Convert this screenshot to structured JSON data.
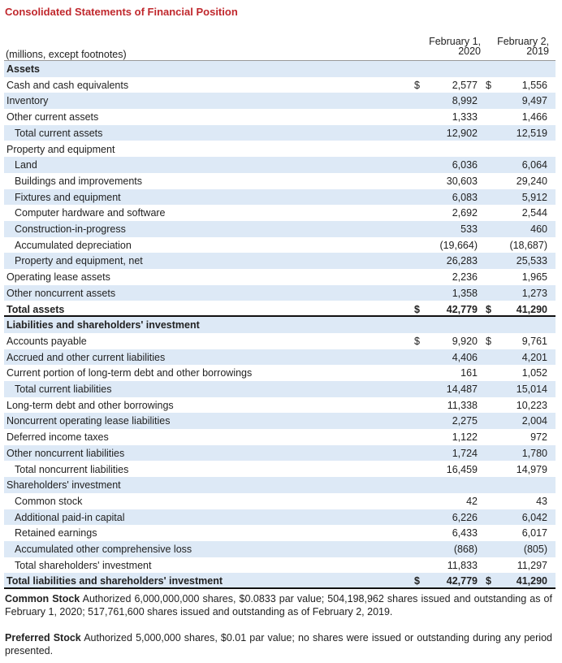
{
  "header": {
    "title": "Consolidated Statements of Financial Position"
  },
  "table": {
    "columns": [
      "(millions, except footnotes)",
      "February 1, 2020",
      "February 2, 2019"
    ],
    "rows": [
      {
        "label": "Assets",
        "bold": true,
        "indent": 0
      },
      {
        "label": "Cash and cash equivalents",
        "indent": 0,
        "cur1": "$",
        "c1": "2,577",
        "cur2": "$",
        "c2": "1,556"
      },
      {
        "label": "Inventory",
        "indent": 0,
        "c1": "8,992",
        "c2": "9,497"
      },
      {
        "label": "Other current assets",
        "indent": 0,
        "c1": "1,333",
        "c2": "1,466"
      },
      {
        "label": "Total current assets",
        "indent": 1,
        "c1": "12,902",
        "c2": "12,519"
      },
      {
        "label": "Property and equipment",
        "indent": 0
      },
      {
        "label": "Land",
        "indent": 1,
        "c1": "6,036",
        "c2": "6,064"
      },
      {
        "label": "Buildings and improvements",
        "indent": 1,
        "c1": "30,603",
        "c2": "29,240"
      },
      {
        "label": "Fixtures and equipment",
        "indent": 1,
        "c1": "6,083",
        "c2": "5,912"
      },
      {
        "label": "Computer hardware and software",
        "indent": 1,
        "c1": "2,692",
        "c2": "2,544"
      },
      {
        "label": "Construction-in-progress",
        "indent": 1,
        "c1": "533",
        "c2": "460"
      },
      {
        "label": "Accumulated depreciation",
        "indent": 1,
        "c1": "(19,664)",
        "c2": "(18,687)"
      },
      {
        "label": "Property and equipment, net",
        "indent": 1,
        "c1": "26,283",
        "c2": "25,533"
      },
      {
        "label": "Operating lease assets",
        "indent": 0,
        "c1": "2,236",
        "c2": "1,965"
      },
      {
        "label": "Other noncurrent assets",
        "indent": 0,
        "c1": "1,358",
        "c2": "1,273"
      },
      {
        "label": "Total assets",
        "bold": true,
        "indent": 0,
        "cur1": "$",
        "c1": "42,779",
        "cur2": "$",
        "c2": "41,290"
      },
      {
        "label": "Liabilities and shareholders' investment",
        "bold": true,
        "indent": 0
      },
      {
        "label": "Accounts payable",
        "indent": 0,
        "cur1": "$",
        "c1": "9,920",
        "cur2": "$",
        "c2": "9,761"
      },
      {
        "label": "Accrued and other current liabilities",
        "indent": 0,
        "c1": "4,406",
        "c2": "4,201"
      },
      {
        "label": "Current portion of long-term debt and other borrowings",
        "indent": 0,
        "c1": "161",
        "c2": "1,052"
      },
      {
        "label": "Total current liabilities",
        "indent": 1,
        "c1": "14,487",
        "c2": "15,014"
      },
      {
        "label": "Long-term debt and other borrowings",
        "indent": 0,
        "c1": "11,338",
        "c2": "10,223"
      },
      {
        "label": "Noncurrent operating lease liabilities",
        "indent": 0,
        "c1": "2,275",
        "c2": "2,004"
      },
      {
        "label": "Deferred income taxes",
        "indent": 0,
        "c1": "1,122",
        "c2": "972"
      },
      {
        "label": "Other noncurrent liabilities",
        "indent": 0,
        "c1": "1,724",
        "c2": "1,780"
      },
      {
        "label": "Total noncurrent liabilities",
        "indent": 1,
        "c1": "16,459",
        "c2": "14,979"
      },
      {
        "label": "Shareholders' investment",
        "indent": 0
      },
      {
        "label": "Common stock",
        "indent": 1,
        "c1": "42",
        "c2": "43"
      },
      {
        "label": "Additional paid-in capital",
        "indent": 1,
        "c1": "6,226",
        "c2": "6,042"
      },
      {
        "label": "Retained earnings",
        "indent": 1,
        "c1": "6,433",
        "c2": "6,017"
      },
      {
        "label": "Accumulated other comprehensive loss",
        "indent": 1,
        "c1": "(868)",
        "c2": "(805)"
      },
      {
        "label": "Total shareholders' investment",
        "indent": 1,
        "c1": "11,833",
        "c2": "11,297"
      },
      {
        "label": "Total liabilities and shareholders' investment",
        "bold": true,
        "indent": 0,
        "cur1": "$",
        "c1": "42,779",
        "cur2": "$",
        "c2": "41,290"
      }
    ]
  },
  "footnotes": [
    {
      "title": "Common Stock",
      "text": "Authorized 6,000,000,000 shares, $0.0833 par value; 504,198,962 shares issued and outstanding as of February 1, 2020; 517,761,600 shares issued and outstanding as of February 2, 2019."
    },
    {
      "title": "Preferred Stock",
      "text": "Authorized 5,000,000 shares, $0.01 par value; no shares were issued or outstanding during any period presented."
    }
  ]
}
